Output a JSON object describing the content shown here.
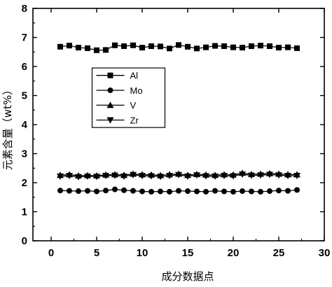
{
  "chart_data": {
    "type": "line",
    "xlabel": "成分数据点",
    "ylabel": "元素含量（wt%）",
    "xlim": [
      -2,
      30
    ],
    "ylim": [
      0,
      8
    ],
    "xticks": [
      "0",
      "5",
      "10",
      "15",
      "20",
      "25",
      "30"
    ],
    "yticks": [
      "0",
      "1",
      "2",
      "3",
      "4",
      "5",
      "6",
      "7",
      "8"
    ],
    "grid": false,
    "legend_position": "center",
    "x": [
      1,
      2,
      3,
      4,
      5,
      6,
      7,
      8,
      9,
      10,
      11,
      12,
      13,
      14,
      15,
      16,
      17,
      18,
      19,
      20,
      21,
      22,
      23,
      24,
      25,
      26,
      27
    ],
    "series": [
      {
        "name": "Al",
        "marker": "square",
        "color": "#000000",
        "values": [
          6.68,
          6.72,
          6.65,
          6.63,
          6.56,
          6.57,
          6.73,
          6.7,
          6.73,
          6.65,
          6.7,
          6.69,
          6.62,
          6.74,
          6.68,
          6.62,
          6.66,
          6.71,
          6.7,
          6.66,
          6.65,
          6.7,
          6.72,
          6.7,
          6.65,
          6.66,
          6.63
        ]
      },
      {
        "name": "Mo",
        "marker": "circle",
        "color": "#000000",
        "values": [
          1.73,
          1.72,
          1.71,
          1.72,
          1.7,
          1.73,
          1.77,
          1.74,
          1.72,
          1.7,
          1.69,
          1.7,
          1.69,
          1.72,
          1.71,
          1.7,
          1.69,
          1.72,
          1.7,
          1.69,
          1.71,
          1.7,
          1.69,
          1.71,
          1.73,
          1.72,
          1.75
        ]
      },
      {
        "name": "V",
        "marker": "triangle-up",
        "color": "#000000",
        "values": [
          2.26,
          2.28,
          2.24,
          2.25,
          2.24,
          2.27,
          2.28,
          2.26,
          2.3,
          2.28,
          2.27,
          2.25,
          2.28,
          2.3,
          2.26,
          2.29,
          2.27,
          2.26,
          2.28,
          2.27,
          2.33,
          2.29,
          2.3,
          2.32,
          2.3,
          2.28,
          2.28
        ]
      },
      {
        "name": "Zr",
        "marker": "triangle-down",
        "color": "#000000",
        "values": [
          2.22,
          2.24,
          2.2,
          2.22,
          2.21,
          2.24,
          2.25,
          2.22,
          2.27,
          2.24,
          2.23,
          2.21,
          2.24,
          2.27,
          2.22,
          2.26,
          2.23,
          2.22,
          2.24,
          2.23,
          2.29,
          2.25,
          2.26,
          2.28,
          2.26,
          2.24,
          2.24
        ]
      }
    ]
  }
}
